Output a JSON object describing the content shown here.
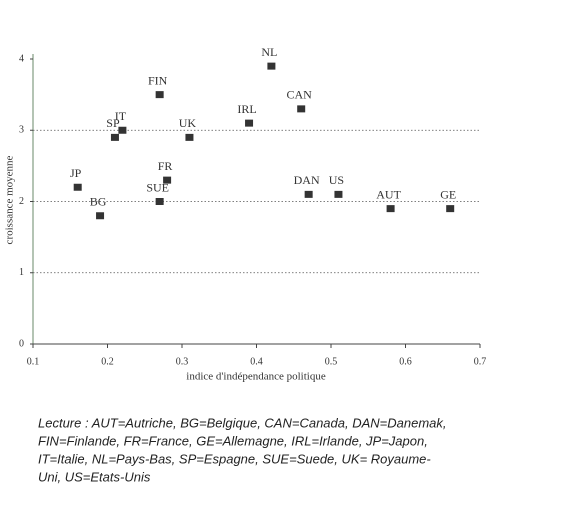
{
  "chart_data": {
    "type": "scatter",
    "xlabel": "indice d'indépendance politique",
    "ylabel": "croissance moyenne",
    "labels": [
      "NL",
      "FIN",
      "CAN",
      "IRL",
      "IT",
      "SP",
      "UK",
      "FR",
      "JP",
      "SUE",
      "DAN",
      "US",
      "AUT",
      "GE",
      "BG"
    ],
    "x": [
      0.42,
      0.27,
      0.46,
      0.39,
      0.22,
      0.21,
      0.31,
      0.28,
      0.16,
      0.27,
      0.47,
      0.51,
      0.58,
      0.66,
      0.19
    ],
    "values": [
      3.9,
      3.5,
      3.3,
      3.1,
      3.0,
      2.9,
      2.9,
      2.3,
      2.2,
      2.0,
      2.1,
      2.1,
      1.9,
      1.9,
      1.8
    ],
    "color": "#333333",
    "xlim": [
      0.1,
      0.7
    ],
    "xticks": [
      0.1,
      0.2,
      0.3,
      0.4,
      0.5,
      0.6,
      0.7
    ],
    "ylim": [
      0,
      4
    ],
    "yticks": [
      0,
      1,
      2,
      3,
      4
    ],
    "grid": true
  },
  "caption": [
    "Lecture : AUT=Autriche, BG=Belgique, CAN=Canada, DAN=Danemak,",
    "FIN=Finlande, FR=France, GE=Allemagne, IRL=Irlande, JP=Japon,",
    "IT=Italie, NL=Pays-Bas, SP=Espagne, SUE=Suede, UK= Royaume-",
    "Uni, US=Etats-Unis"
  ]
}
